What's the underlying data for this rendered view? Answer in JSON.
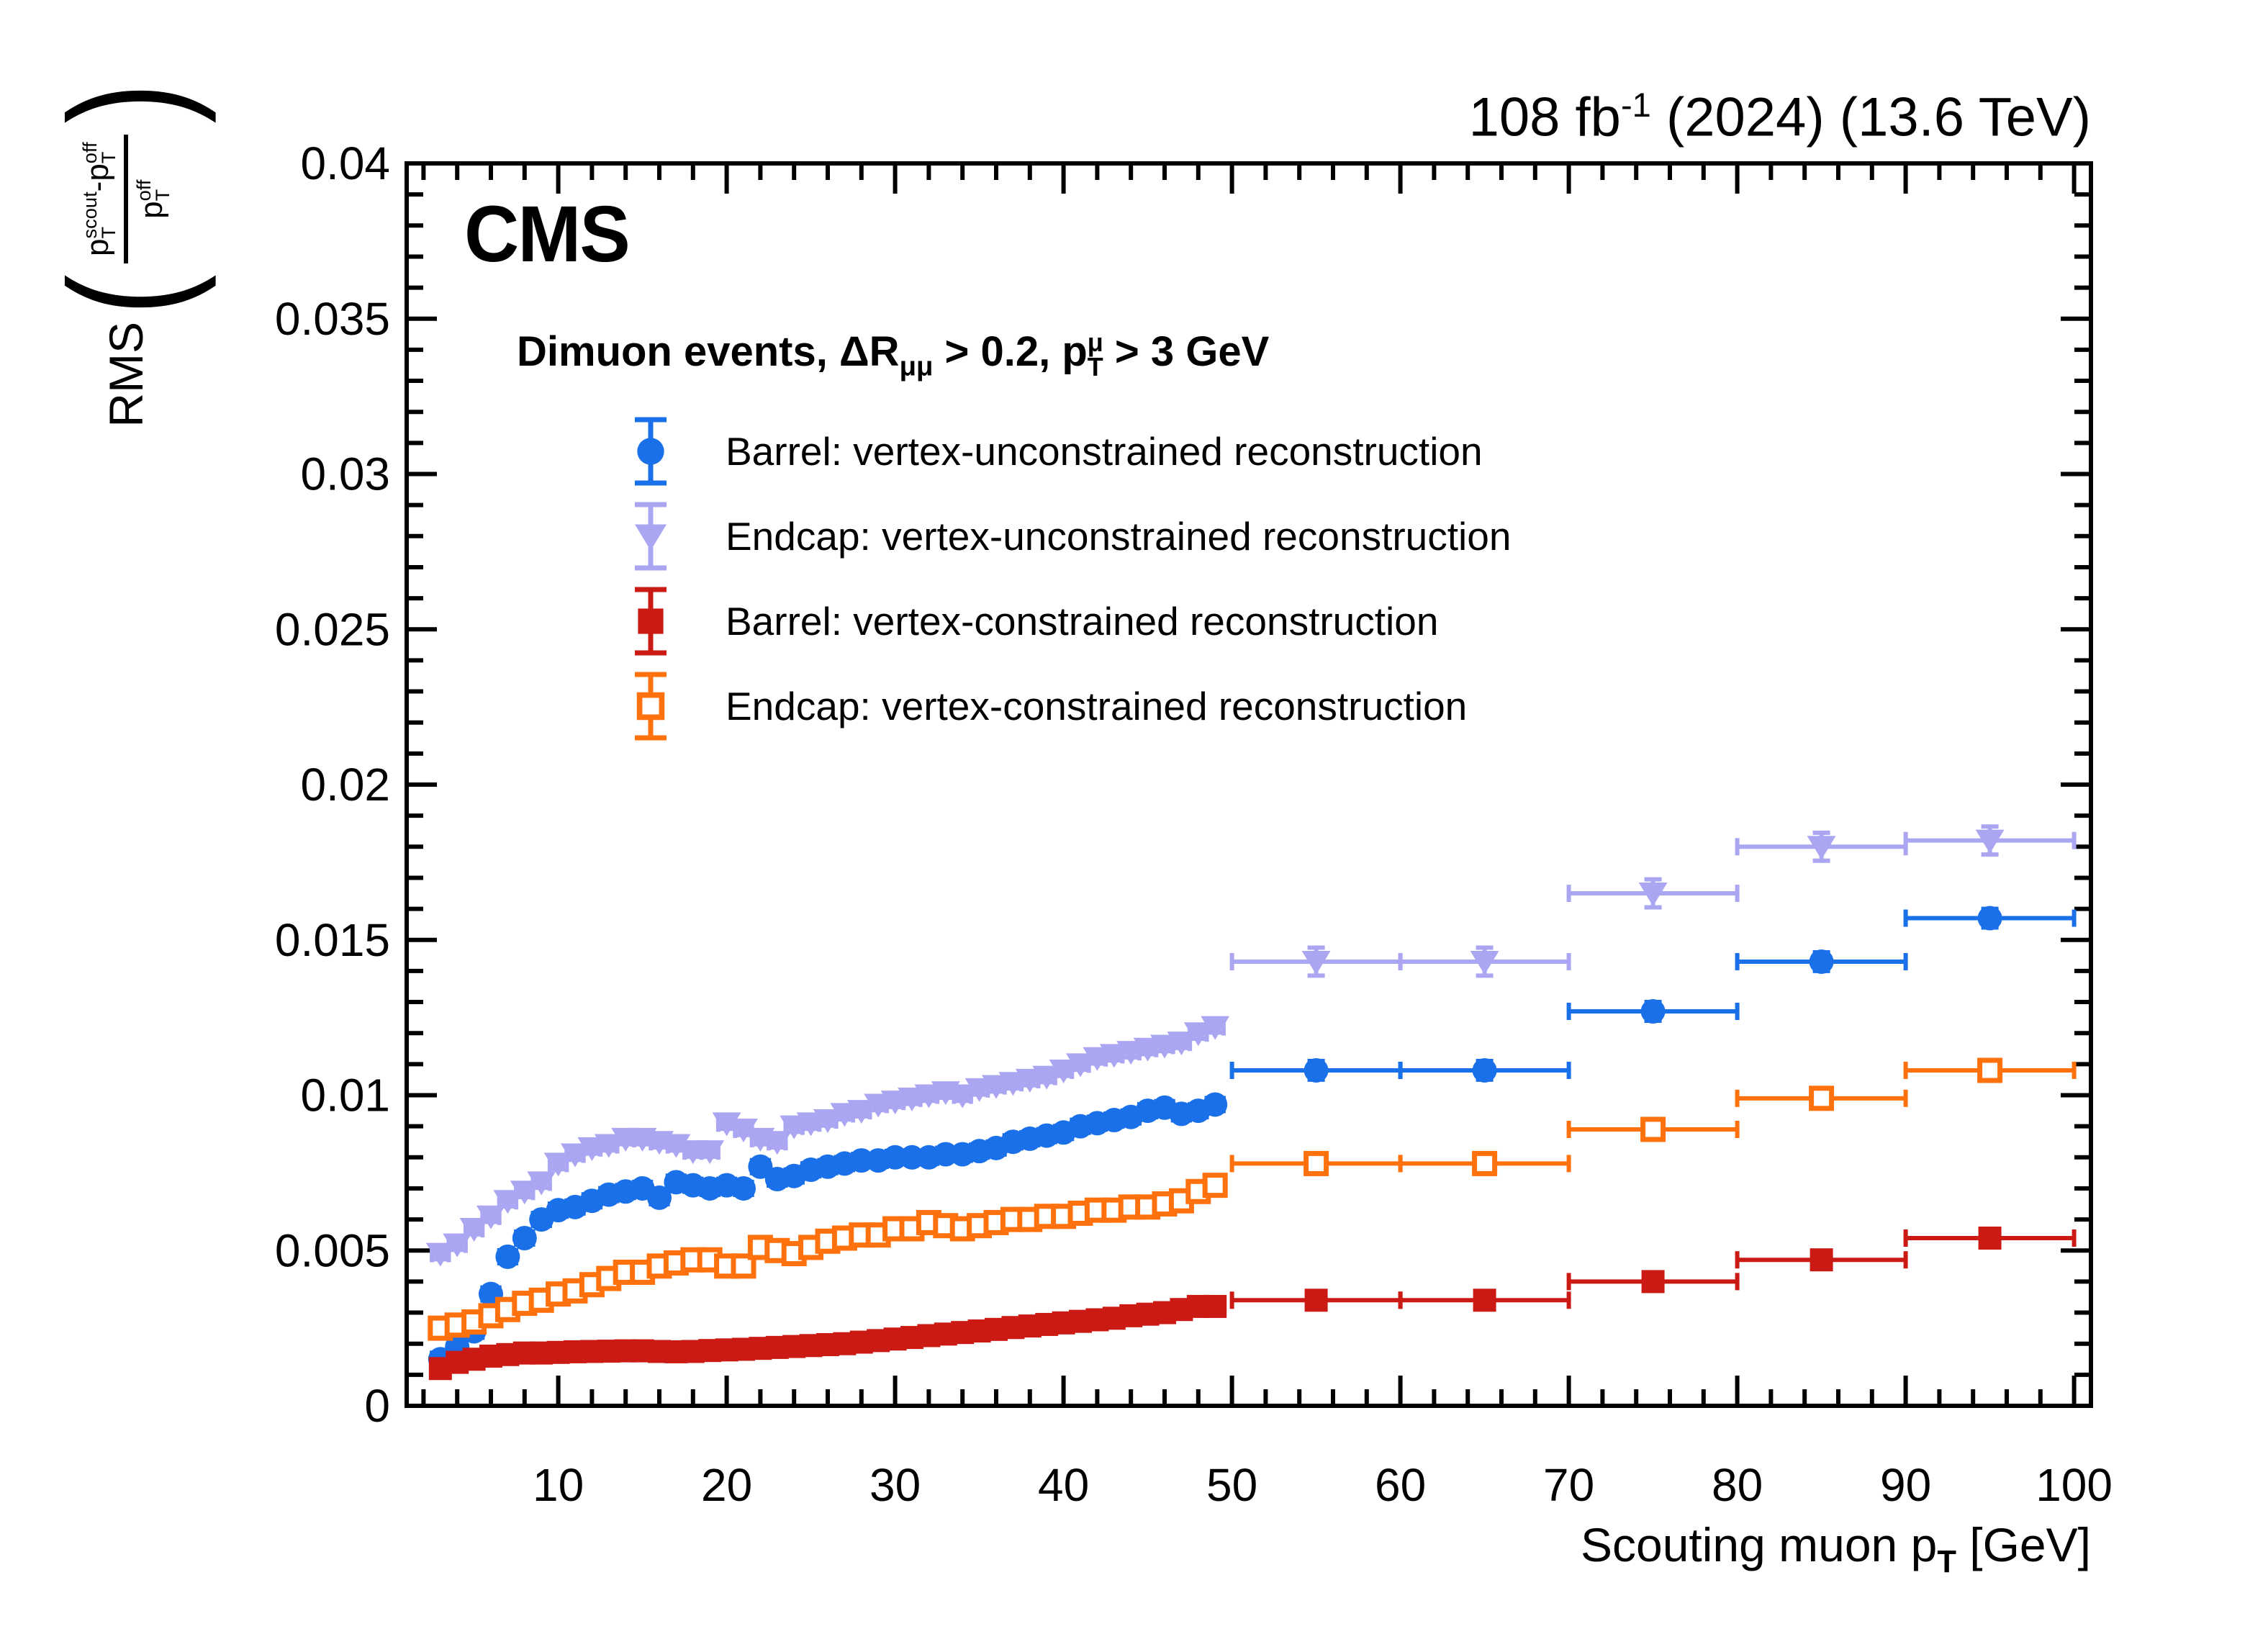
{
  "header": {
    "part1": "108 fb",
    "sup": "-1",
    "part2": " (2024) (13.6 TeV)"
  },
  "plot": {
    "cms_label": "CMS",
    "subtitle": {
      "part1": "Dimuon events, ",
      "delta_r": "ΔR",
      "sub1": "μμ",
      "part2": " > 0.2, p",
      "sup2": "μ",
      "sub2": "T",
      "part3": " > 3 GeV"
    },
    "x_axis": {
      "title_part1": "Scouting muon p",
      "title_sub": "T",
      "title_part2": " [GeV]",
      "min": 1,
      "max": 101,
      "major_step": 10,
      "minor_step": 2,
      "tick_labels": [
        "10",
        "20",
        "30",
        "40",
        "50",
        "60",
        "70",
        "80",
        "90",
        "100"
      ]
    },
    "y_axis": {
      "min": 0,
      "max": 0.04,
      "major_step": 0.005,
      "minor_step": 0.001,
      "tick_labels": [
        "0",
        "0.005",
        "0.01",
        "0.015",
        "0.02",
        "0.025",
        "0.03",
        "0.035",
        "0.04"
      ],
      "title_rms": "RMS",
      "paren_open": "(",
      "paren_close": ")",
      "num_p1": "p",
      "num_sup1": "scout",
      "num_sub1": "T",
      "num_minus": "-",
      "num_p2": "p",
      "num_sup2": "off",
      "num_sub2": "T",
      "den_p": "p",
      "den_sup": "off",
      "den_sub": "T"
    },
    "frame_color": "#000000",
    "background_color": "#ffffff"
  },
  "legend": {
    "order": "top-to-bottom matches chart_data.series"
  },
  "chart_data": {
    "type": "scatter",
    "title": "",
    "xlabel": "Scouting muon pT [GeV]",
    "ylabel": "RMS((pT_scout - pT_off) / pT_off)",
    "xlim": [
      1,
      101
    ],
    "ylim": [
      0,
      0.04
    ],
    "grid": false,
    "legend_position": "upper-left-inside",
    "xerr_small": 0.5,
    "xerr_wide": 5,
    "x": [
      3,
      4,
      5,
      6,
      7,
      8,
      9,
      10,
      11,
      12,
      13,
      14,
      15,
      16,
      17,
      18,
      19,
      20,
      21,
      22,
      23,
      24,
      25,
      26,
      27,
      28,
      29,
      30,
      31,
      32,
      33,
      34,
      35,
      36,
      37,
      38,
      39,
      40,
      41,
      42,
      43,
      44,
      45,
      46,
      47,
      48,
      49,
      55,
      65,
      75,
      85,
      95
    ],
    "series": [
      {
        "name": "Barrel: vertex-unconstrained reconstruction",
        "marker": "circle",
        "color": "#1a70e8",
        "yerr_small": 0.00013,
        "yerr_wide": 0.0003,
        "y": [
          0.0015,
          0.0019,
          0.0024,
          0.0036,
          0.0048,
          0.0054,
          0.006,
          0.0063,
          0.0064,
          0.0066,
          0.0068,
          0.0069,
          0.007,
          0.0067,
          0.0072,
          0.0071,
          0.007,
          0.0071,
          0.007,
          0.0077,
          0.0073,
          0.0074,
          0.0076,
          0.0077,
          0.0078,
          0.0079,
          0.0079,
          0.008,
          0.008,
          0.008,
          0.0081,
          0.0081,
          0.0082,
          0.0083,
          0.0085,
          0.0086,
          0.0087,
          0.0088,
          0.009,
          0.0091,
          0.0092,
          0.0093,
          0.0095,
          0.0096,
          0.0094,
          0.0095,
          0.0097,
          0.0108,
          0.0108,
          0.0127,
          0.0143,
          0.0157
        ]
      },
      {
        "name": "Endcap: vertex-unconstrained reconstruction",
        "marker": "triangle-down",
        "color": "#aba6f2",
        "yerr_small": 0.00018,
        "yerr_wide": 0.00045,
        "y": [
          0.0049,
          0.0052,
          0.0057,
          0.0061,
          0.0066,
          0.0069,
          0.0072,
          0.0078,
          0.0081,
          0.0083,
          0.0084,
          0.0086,
          0.0086,
          0.0085,
          0.0084,
          0.0082,
          0.0082,
          0.0091,
          0.0089,
          0.0086,
          0.0085,
          0.009,
          0.0091,
          0.0092,
          0.0094,
          0.0095,
          0.0097,
          0.0098,
          0.0099,
          0.01,
          0.0101,
          0.01,
          0.0102,
          0.0103,
          0.0104,
          0.0105,
          0.0106,
          0.0108,
          0.011,
          0.0112,
          0.0113,
          0.0114,
          0.0115,
          0.0116,
          0.0117,
          0.012,
          0.0122,
          0.0143,
          0.0143,
          0.0165,
          0.018,
          0.0182
        ]
      },
      {
        "name": "Barrel: vertex-constrained reconstruction",
        "marker": "square",
        "color": "#cb1a13",
        "yerr_small": 0.0001,
        "yerr_wide": 0.00025,
        "y": [
          0.0012,
          0.0014,
          0.0015,
          0.0016,
          0.00165,
          0.0017,
          0.0017,
          0.00172,
          0.00174,
          0.00175,
          0.00176,
          0.00177,
          0.00177,
          0.00175,
          0.00174,
          0.00175,
          0.00178,
          0.0018,
          0.00182,
          0.00185,
          0.00188,
          0.00191,
          0.00194,
          0.00197,
          0.002,
          0.00205,
          0.0021,
          0.00215,
          0.0022,
          0.00226,
          0.00231,
          0.00236,
          0.00241,
          0.00246,
          0.00252,
          0.00257,
          0.00262,
          0.00267,
          0.00272,
          0.00277,
          0.00282,
          0.0029,
          0.00295,
          0.003,
          0.0031,
          0.0032,
          0.0032,
          0.0034,
          0.0034,
          0.004,
          0.0047,
          0.0054
        ]
      },
      {
        "name": "Endcap: vertex-constrained reconstruction",
        "marker": "open-square",
        "color": "#ff710d",
        "yerr_small": 0.00012,
        "yerr_wide": 0.00028,
        "y": [
          0.0025,
          0.0026,
          0.0027,
          0.0029,
          0.0031,
          0.0033,
          0.0034,
          0.0036,
          0.0037,
          0.0039,
          0.0041,
          0.0043,
          0.0043,
          0.0045,
          0.0046,
          0.0047,
          0.0047,
          0.0045,
          0.0045,
          0.0051,
          0.005,
          0.0049,
          0.0051,
          0.0053,
          0.0054,
          0.0055,
          0.0055,
          0.0057,
          0.0057,
          0.0059,
          0.0058,
          0.0057,
          0.0058,
          0.0059,
          0.006,
          0.006,
          0.0061,
          0.0061,
          0.0062,
          0.0063,
          0.0063,
          0.0064,
          0.0064,
          0.0065,
          0.0066,
          0.0069,
          0.0071,
          0.0078,
          0.0078,
          0.0089,
          0.0099,
          0.0108
        ]
      }
    ]
  }
}
